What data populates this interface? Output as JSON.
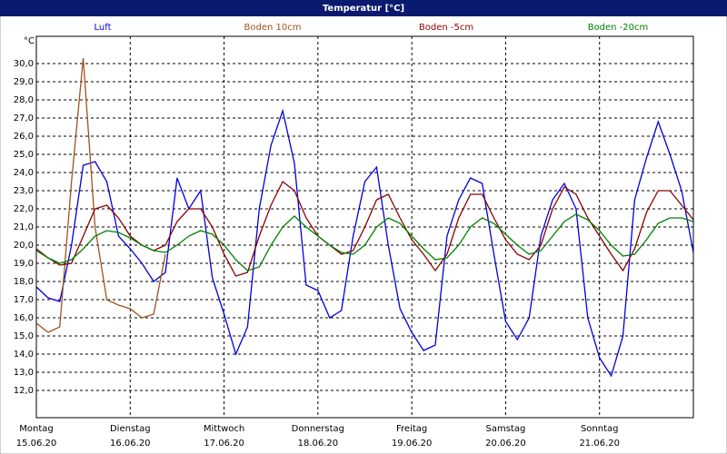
{
  "chart_data": {
    "type": "line",
    "title": "Temperatur [°C]",
    "y_unit": "°C",
    "x": [
      0,
      0.125,
      0.25,
      0.375,
      0.5,
      0.625,
      0.75,
      0.875,
      1,
      1.125,
      1.25,
      1.375,
      1.5,
      1.625,
      1.75,
      1.875,
      2,
      2.125,
      2.25,
      2.375,
      2.5,
      2.625,
      2.75,
      2.875,
      3,
      3.125,
      3.25,
      3.375,
      3.5,
      3.625,
      3.75,
      3.875,
      4,
      4.125,
      4.25,
      4.375,
      4.5,
      4.625,
      4.75,
      4.875,
      5,
      5.125,
      5.25,
      5.375,
      5.5,
      5.625,
      5.75,
      5.875,
      6,
      6.125,
      6.25,
      6.375,
      6.5,
      6.625,
      6.75,
      6.875,
      7
    ],
    "xlim": [
      0,
      7
    ],
    "xticks": [
      {
        "value": 0,
        "label": "Montag"
      },
      {
        "value": 1,
        "label": "Dienstag"
      },
      {
        "value": 2,
        "label": "Mittwoch"
      },
      {
        "value": 3,
        "label": "Donnerstag"
      },
      {
        "value": 4,
        "label": "Freitag"
      },
      {
        "value": 5,
        "label": "Samstag"
      },
      {
        "value": 6,
        "label": "Sonntag"
      }
    ],
    "xtick_dates": [
      "15.06.20",
      "16.06.20",
      "17.06.20",
      "18.06.20",
      "19.06.20",
      "20.06.20",
      "21.06.20"
    ],
    "ylim": [
      10.5,
      31.5
    ],
    "yticks": [
      {
        "value": 12,
        "label": "12,0"
      },
      {
        "value": 13,
        "label": "13,0"
      },
      {
        "value": 14,
        "label": "14,0"
      },
      {
        "value": 15,
        "label": "15,0"
      },
      {
        "value": 16,
        "label": "16,0"
      },
      {
        "value": 17,
        "label": "17,0"
      },
      {
        "value": 18,
        "label": "18,0"
      },
      {
        "value": 19,
        "label": "19,0"
      },
      {
        "value": 20,
        "label": "20,0"
      },
      {
        "value": 21,
        "label": "21,0"
      },
      {
        "value": 22,
        "label": "22,0"
      },
      {
        "value": 23,
        "label": "23,0"
      },
      {
        "value": 24,
        "label": "24,0"
      },
      {
        "value": 25,
        "label": "25,0"
      },
      {
        "value": 26,
        "label": "26,0"
      },
      {
        "value": 27,
        "label": "27,0"
      },
      {
        "value": 28,
        "label": "28,0"
      },
      {
        "value": 29,
        "label": "29,0"
      },
      {
        "value": 30,
        "label": "30,0"
      }
    ],
    "grid": true,
    "series": [
      {
        "name": "Luft",
        "color": "#0000dd",
        "values": [
          17.7,
          17.1,
          16.9,
          20.0,
          24.4,
          24.6,
          23.5,
          20.5,
          19.8,
          19.0,
          18.0,
          18.5,
          23.7,
          22.0,
          23.0,
          18.2,
          16.2,
          14.0,
          15.5,
          22.0,
          25.5,
          27.4,
          24.5,
          17.8,
          17.5,
          16.0,
          16.4,
          20.5,
          23.5,
          24.3,
          20.0,
          16.5,
          15.2,
          14.2,
          14.5,
          20.5,
          22.5,
          23.7,
          23.4,
          19.5,
          15.8,
          14.8,
          16.0,
          20.5,
          22.5,
          23.4,
          22.0,
          16.0,
          13.8,
          12.8,
          15.0,
          22.5,
          24.8,
          26.8,
          25.0,
          23.0,
          19.6
        ]
      },
      {
        "name": "Boden 10cm",
        "color": "#a0521e",
        "values": [
          15.7,
          15.2,
          15.5,
          23.5,
          30.3,
          21.0,
          17.0,
          16.7,
          16.5,
          16.0,
          16.2,
          19.5,
          null,
          null,
          null,
          null,
          null,
          null,
          null,
          null,
          null,
          null,
          null,
          null,
          null,
          null,
          null,
          null,
          null,
          null,
          null,
          null,
          null,
          null,
          null,
          null,
          null,
          null,
          null,
          null,
          null,
          null,
          null,
          null,
          null,
          null,
          null,
          null,
          null,
          null,
          null,
          null,
          null,
          null,
          null,
          null,
          null
        ]
      },
      {
        "name": "Boden -5cm",
        "color": "#8b0000",
        "values": [
          19.8,
          19.3,
          18.9,
          19.0,
          20.5,
          22.0,
          22.2,
          21.5,
          20.5,
          20.0,
          19.7,
          20.0,
          21.3,
          22.0,
          22.0,
          21.0,
          19.5,
          18.3,
          18.5,
          20.5,
          22.2,
          23.5,
          23.0,
          21.5,
          20.5,
          20.0,
          19.5,
          19.7,
          21.0,
          22.5,
          22.8,
          21.5,
          20.3,
          19.5,
          18.6,
          19.5,
          21.5,
          22.8,
          22.8,
          21.5,
          20.3,
          19.5,
          19.2,
          20.0,
          22.0,
          23.2,
          22.8,
          21.5,
          20.5,
          19.5,
          18.6,
          19.8,
          21.8,
          23.0,
          23.0,
          22.2,
          21.4
        ]
      },
      {
        "name": "Boden -20cm",
        "color": "#008000",
        "values": [
          19.7,
          19.3,
          19.0,
          19.2,
          19.8,
          20.5,
          20.8,
          20.7,
          20.4,
          20.0,
          19.7,
          19.6,
          20.0,
          20.5,
          20.8,
          20.6,
          20.0,
          19.2,
          18.6,
          18.8,
          20.0,
          21.0,
          21.6,
          21.0,
          20.5,
          20.0,
          19.6,
          19.5,
          20.0,
          21.0,
          21.5,
          21.2,
          20.5,
          19.8,
          19.2,
          19.3,
          20.0,
          21.0,
          21.5,
          21.2,
          20.6,
          20.0,
          19.5,
          19.7,
          20.5,
          21.3,
          21.7,
          21.4,
          20.8,
          20.0,
          19.4,
          19.5,
          20.3,
          21.2,
          21.5,
          21.5,
          21.3
        ]
      }
    ]
  }
}
